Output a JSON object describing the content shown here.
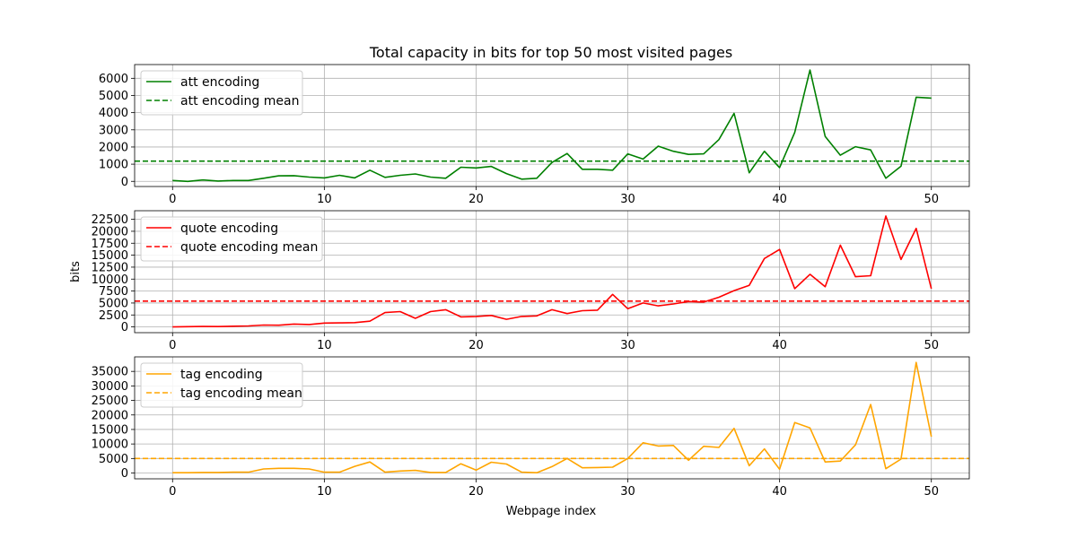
{
  "chart_data": {
    "type": "line",
    "title": "Total capacity in bits for top 50 most visited pages",
    "xlabel": "Webpage index",
    "ylabel": "bits",
    "x": [
      0,
      1,
      2,
      3,
      4,
      5,
      6,
      7,
      8,
      9,
      10,
      11,
      12,
      13,
      14,
      15,
      16,
      17,
      18,
      19,
      20,
      21,
      22,
      23,
      24,
      25,
      26,
      27,
      28,
      29,
      30,
      31,
      32,
      33,
      34,
      35,
      36,
      37,
      38,
      39,
      40,
      41,
      42,
      43,
      44,
      45,
      46,
      47,
      48,
      49,
      50
    ],
    "xlim": [
      -2.5,
      52.5
    ],
    "xticks": [
      "0",
      "10",
      "20",
      "30",
      "40",
      "50"
    ],
    "grid": true,
    "panels": [
      {
        "legend_placement": "upper-left",
        "ylim": [
          -300,
          6800
        ],
        "yticks": [
          "0",
          "1000",
          "2000",
          "3000",
          "4000",
          "5000",
          "6000"
        ],
        "series": [
          {
            "name": "att encoding",
            "color": "#008000",
            "style": "solid",
            "values": [
              50,
              0,
              80,
              20,
              50,
              50,
              180,
              320,
              330,
              250,
              200,
              350,
              200,
              650,
              230,
              350,
              430,
              250,
              180,
              820,
              780,
              870,
              450,
              130,
              180,
              1100,
              1620,
              700,
              700,
              650,
              1600,
              1300,
              2050,
              1750,
              1570,
              1600,
              2430,
              3960,
              500,
              1750,
              800,
              2850,
              6480,
              2620,
              1520,
              2020,
              1830,
              180,
              880,
              4900,
              4850
            ]
          },
          {
            "name": "att encoding mean",
            "color": "#008000",
            "style": "dashed",
            "values": [
              1180,
              1180
            ]
          }
        ]
      },
      {
        "legend_placement": "upper-left",
        "ylim": [
          -1200,
          24300
        ],
        "yticks": [
          "0",
          "2500",
          "5000",
          "7500",
          "10000",
          "12500",
          "15000",
          "17500",
          "20000",
          "22500"
        ],
        "series": [
          {
            "name": "quote encoding",
            "color": "#ff0000",
            "style": "solid",
            "values": [
              0,
              50,
              100,
              80,
              150,
              200,
              400,
              350,
              600,
              500,
              800,
              850,
              900,
              1200,
              3000,
              3200,
              1800,
              3200,
              3600,
              2100,
              2200,
              2400,
              1600,
              2200,
              2300,
              3600,
              2800,
              3400,
              3500,
              6800,
              3800,
              5000,
              4400,
              4800,
              5300,
              5200,
              6200,
              7600,
              8700,
              14300,
              16200,
              8000,
              11000,
              8400,
              17100,
              10500,
              10700,
              23200,
              14100,
              20600,
              8000
            ]
          },
          {
            "name": "quote encoding mean",
            "color": "#ff0000",
            "style": "dashed",
            "values": [
              5400,
              5400
            ]
          }
        ]
      },
      {
        "legend_placement": "upper-left",
        "ylim": [
          -2000,
          40000
        ],
        "yticks": [
          "0",
          "5000",
          "10000",
          "15000",
          "20000",
          "25000",
          "30000",
          "35000"
        ],
        "series": [
          {
            "name": "tag encoding",
            "color": "#ffa500",
            "style": "solid",
            "values": [
              100,
              100,
              200,
              200,
              300,
              300,
              1400,
              1600,
              1600,
              1400,
              300,
              300,
              2300,
              3800,
              300,
              700,
              900,
              200,
              200,
              3200,
              1000,
              3700,
              3100,
              300,
              100,
              2200,
              5000,
              1800,
              1900,
              2000,
              5000,
              10400,
              9300,
              9500,
              4400,
              9200,
              8800,
              15400,
              2500,
              8300,
              1300,
              17400,
              15500,
              3800,
              4100,
              9700,
              23600,
              1500,
              4800,
              38100,
              12500
            ]
          },
          {
            "name": "tag encoding mean",
            "color": "#ffa500",
            "style": "dashed",
            "values": [
              5000,
              5000
            ]
          }
        ]
      }
    ]
  }
}
